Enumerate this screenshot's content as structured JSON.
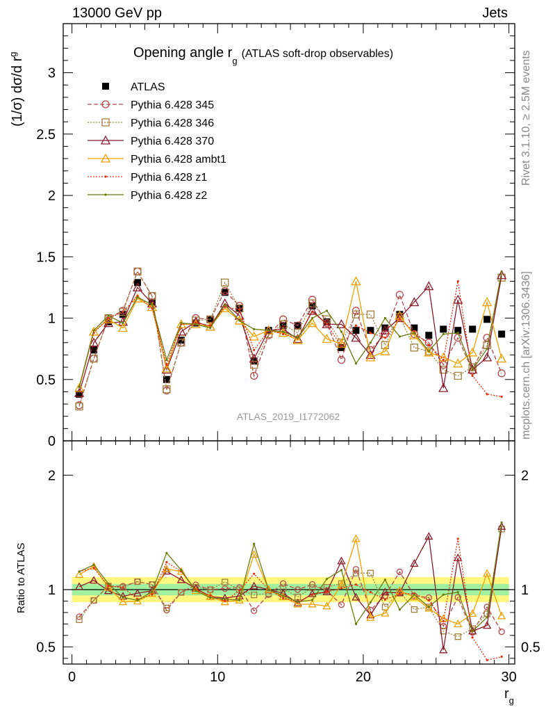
{
  "header": {
    "left": "13000 GeV pp",
    "right": "Jets"
  },
  "side_labels": {
    "rivet": "Rivet 3.1.10, ≥ 2.5M events",
    "mcplots": "mcplots.cern.ch [arXiv:1306.3436]"
  },
  "chart_data": [
    {
      "type": "line",
      "panel": "main",
      "title": "Opening angle r",
      "title_sub": "g",
      "title_note": "(ATLAS soft-drop observables)",
      "ylabel": "(1/σ) dσ/d r",
      "ylabel_sub": "g",
      "xlabel": "r",
      "xlabel_sub": "g",
      "analysis_tag": "ATLAS_2019_I1772062",
      "xlim": [
        -0.6,
        30.4
      ],
      "ylim": [
        0,
        3.4
      ],
      "yticks": [
        "0",
        "0.5",
        "1",
        "1.5",
        "2",
        "2.5",
        "3"
      ],
      "grid": false,
      "legend_position": "top-left",
      "x": [
        0.5,
        1.5,
        2.5,
        3.5,
        4.5,
        5.5,
        6.5,
        7.5,
        8.5,
        9.5,
        10.5,
        11.5,
        12.5,
        13.5,
        14.5,
        15.5,
        16.5,
        17.5,
        18.5,
        19.5,
        20.5,
        21.5,
        22.5,
        23.5,
        24.5,
        25.5,
        26.5,
        27.5,
        28.5,
        29.5
      ],
      "series": [
        {
          "name": "ATLAS",
          "color": "#000000",
          "marker": "square",
          "line": "none",
          "values": [
            0.38,
            0.74,
            0.97,
            1.03,
            1.29,
            1.13,
            0.5,
            0.82,
            0.96,
            0.99,
            1.21,
            1.08,
            0.65,
            0.9,
            0.94,
            0.94,
            1.1,
            0.97,
            0.76,
            0.9,
            0.9,
            0.92,
            1.03,
            0.92,
            0.86,
            0.91,
            0.9,
            0.91,
            0.99,
            0.87
          ]
        },
        {
          "name": "Pythia 6.428 345",
          "color": "#b5474b",
          "marker": "circle",
          "line": "dashed",
          "values": [
            0.29,
            0.67,
            1.0,
            1.06,
            1.38,
            1.18,
            0.41,
            0.8,
            1.0,
            0.99,
            1.22,
            1.1,
            0.53,
            0.86,
            0.99,
            0.94,
            1.15,
            0.96,
            0.66,
            1.06,
            0.74,
            0.87,
            1.19,
            0.87,
            0.8,
            0.62,
            0.84,
            0.57,
            0.84,
            0.55
          ]
        },
        {
          "name": "Pythia 6.428 346",
          "color": "#a08040",
          "marker": "square-open",
          "line": "dotted",
          "values": [
            0.28,
            0.67,
            1.0,
            1.05,
            1.38,
            1.18,
            0.42,
            0.8,
            0.98,
            0.99,
            1.29,
            1.08,
            0.62,
            0.87,
            0.95,
            0.88,
            1.12,
            0.99,
            0.8,
            1.03,
            1.03,
            0.78,
            1.01,
            0.76,
            0.73,
            0.58,
            0.53,
            0.6,
            0.78,
            1.33
          ]
        },
        {
          "name": "Pythia 6.428 370",
          "color": "#8b1a2a",
          "marker": "triangle",
          "line": "solid",
          "values": [
            0.39,
            0.8,
            0.96,
            0.97,
            1.25,
            1.12,
            0.58,
            0.89,
            0.97,
            0.93,
            1.12,
            1.02,
            0.67,
            0.9,
            0.91,
            0.83,
            1.06,
            0.95,
            0.95,
            0.84,
            0.7,
            0.9,
            1.0,
            1.13,
            1.26,
            0.43,
            1.15,
            0.58,
            0.68,
            1.35
          ]
        },
        {
          "name": "Pythia 6.428 ambt1",
          "color": "#f0a000",
          "marker": "triangle-open",
          "line": "solid",
          "values": [
            0.43,
            0.89,
            0.99,
            0.92,
            1.16,
            1.09,
            0.59,
            0.95,
            0.95,
            0.93,
            1.08,
            0.98,
            0.85,
            0.9,
            0.88,
            0.82,
            0.96,
            0.83,
            0.79,
            1.3,
            0.68,
            0.73,
            1.02,
            0.86,
            0.72,
            0.68,
            0.63,
            0.72,
            1.13,
            0.67
          ]
        },
        {
          "name": "Pythia 6.428 z1",
          "color": "#e03010",
          "marker": "dot",
          "line": "dotted",
          "values": [
            0.44,
            0.88,
            1.0,
            1.05,
            1.18,
            1.08,
            0.62,
            0.95,
            0.96,
            0.94,
            1.09,
            1.07,
            0.74,
            0.9,
            0.87,
            0.84,
            1.05,
            0.95,
            0.77,
            0.94,
            0.88,
            0.84,
            0.99,
            0.89,
            0.78,
            0.66,
            1.3,
            0.53,
            0.38,
            0.36
          ]
        },
        {
          "name": "Pythia 6.428 z2",
          "color": "#6b7b10",
          "marker": "dot",
          "line": "solid",
          "values": [
            0.44,
            0.9,
            1.02,
            0.96,
            1.17,
            1.11,
            0.66,
            0.96,
            0.95,
            0.92,
            1.11,
            0.98,
            0.91,
            0.9,
            0.89,
            0.84,
            1.0,
            1.06,
            0.89,
            0.63,
            0.8,
            1.0,
            0.85,
            0.88,
            0.73,
            0.87,
            0.88,
            0.58,
            0.75,
            1.38
          ]
        }
      ]
    },
    {
      "type": "line",
      "panel": "ratio",
      "ylabel": "Ratio to ATLAS",
      "xlim": [
        -0.6,
        30.4
      ],
      "ylim": [
        0.35,
        2.3
      ],
      "yticks": [
        "0.5",
        "1",
        "2"
      ],
      "xticks": [
        "0",
        "10",
        "20",
        "30"
      ],
      "band_inner": [
        0.95,
        1.05
      ],
      "band_outer": [
        0.89,
        1.11
      ]
    }
  ]
}
